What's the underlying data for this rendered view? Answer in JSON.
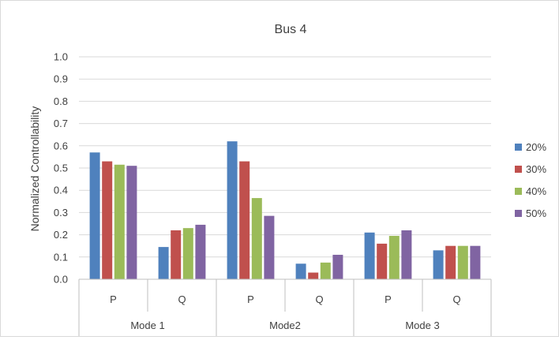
{
  "chart_data": {
    "type": "bar",
    "title": "Bus 4",
    "xlabel": "",
    "ylabel": "Normalized Controllability",
    "ylim": [
      0,
      1.0
    ],
    "yticks": [
      "0.0",
      "0.1",
      "0.2",
      "0.3",
      "0.4",
      "0.5",
      "0.6",
      "0.7",
      "0.8",
      "0.9",
      "1.0"
    ],
    "grid": true,
    "legend_position": "right",
    "groups": [
      "Mode 1",
      "Mode2",
      "Mode 3"
    ],
    "categories": [
      "P",
      "Q",
      "P",
      "Q",
      "P",
      "Q"
    ],
    "series": [
      {
        "name": "20%",
        "color": "#4f81bd",
        "values": [
          0.57,
          0.145,
          0.62,
          0.07,
          0.21,
          0.13
        ]
      },
      {
        "name": "30%",
        "color": "#c0504d",
        "values": [
          0.53,
          0.22,
          0.53,
          0.03,
          0.16,
          0.15
        ]
      },
      {
        "name": "40%",
        "color": "#9bbb59",
        "values": [
          0.515,
          0.23,
          0.365,
          0.075,
          0.195,
          0.15
        ]
      },
      {
        "name": "50%",
        "color": "#8064a2",
        "values": [
          0.51,
          0.245,
          0.285,
          0.11,
          0.22,
          0.15
        ]
      }
    ]
  }
}
